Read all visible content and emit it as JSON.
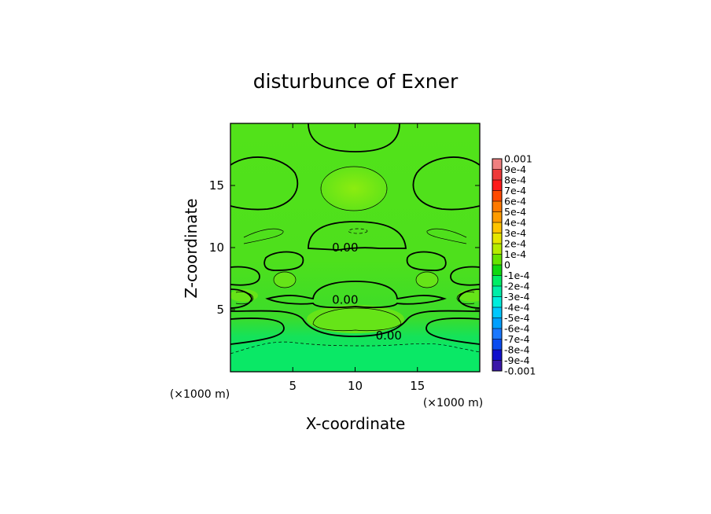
{
  "chart_data": {
    "type": "heatmap",
    "title": "disturbunce of Exner",
    "xlabel": "X-coordinate",
    "ylabel": "Z-coordinate",
    "x_unit_label": "(×1000 m)",
    "y_unit_label": "(×1000 m)",
    "xlim": [
      0,
      20
    ],
    "ylim": [
      0,
      20
    ],
    "x_ticks": [
      {
        "value": 5,
        "label": "5"
      },
      {
        "value": 10,
        "label": "10"
      },
      {
        "value": 15,
        "label": "15"
      }
    ],
    "y_ticks": [
      {
        "value": 5,
        "label": "5"
      },
      {
        "value": 10,
        "label": "10"
      },
      {
        "value": 15,
        "label": "15"
      }
    ],
    "contour_labels": [
      {
        "x": 9.2,
        "y": 10.0,
        "text": "0.00"
      },
      {
        "x": 9.2,
        "y": 5.8,
        "text": "0.00"
      },
      {
        "x": 12.7,
        "y": 2.9,
        "text": "0.00"
      }
    ],
    "colorbar": {
      "levels": [
        "0.001",
        "9e-4",
        "8e-4",
        "7e-4",
        "6e-4",
        "5e-4",
        "4e-4",
        "3e-4",
        "2e-4",
        "1e-4",
        "0",
        "-1e-4",
        "-2e-4",
        "-3e-4",
        "-4e-4",
        "-5e-4",
        "-6e-4",
        "-7e-4",
        "-8e-4",
        "-9e-4",
        "-0.001"
      ],
      "colors": [
        "#f08080",
        "#ee3a3a",
        "#ff1a1a",
        "#ff4a00",
        "#ff7a00",
        "#ff9c00",
        "#ffc400",
        "#e6e600",
        "#b6ec00",
        "#66e400",
        "#10d810",
        "#00ee66",
        "#00eea8",
        "#00eedd",
        "#00c8ff",
        "#00a0ff",
        "#1a78ff",
        "#0a4cf0",
        "#1010cc",
        "#3a18a8"
      ]
    }
  }
}
